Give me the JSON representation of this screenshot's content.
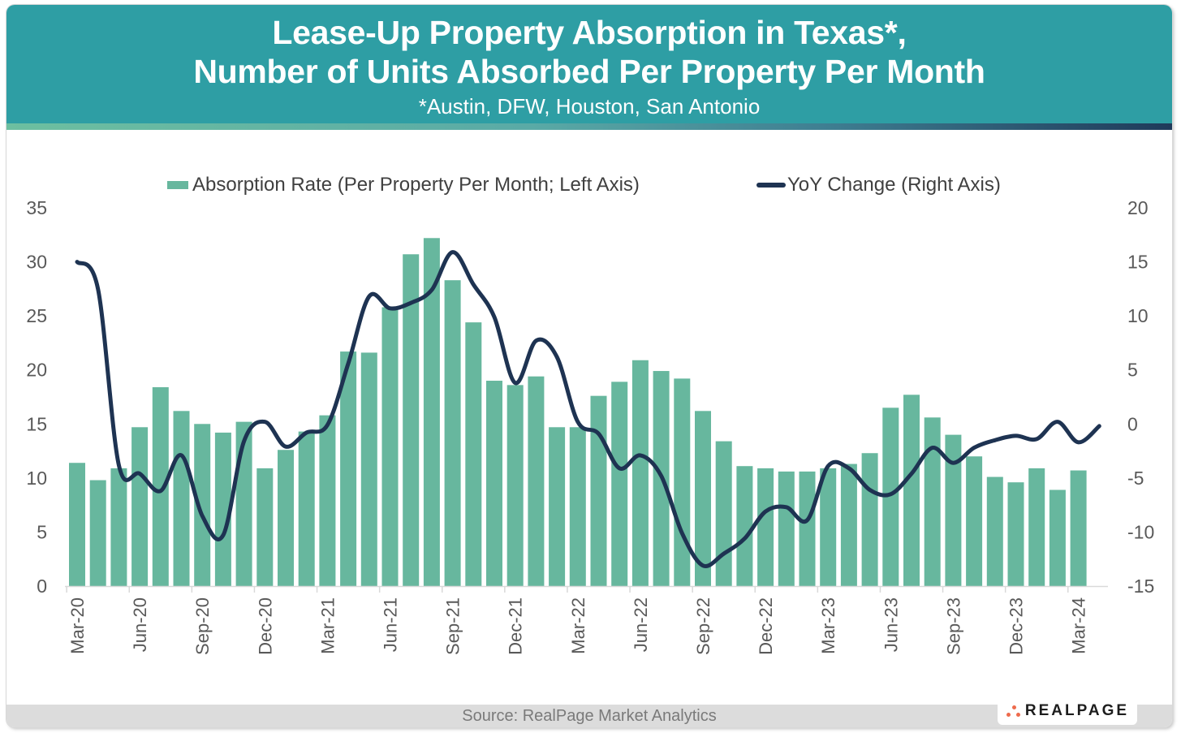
{
  "header": {
    "title_line1": "Lease-Up Property Absorption in Texas*,",
    "title_line2": "Number of Units Absorbed Per Property Per Month",
    "subtitle": "*Austin, DFW, Houston, San Antonio"
  },
  "footer": {
    "source": "Source: RealPage Market Analytics",
    "logo_text": "REALPAGE"
  },
  "colors": {
    "header_bg": "#2e9ea4",
    "bar": "#67b79e",
    "line": "#1e3352",
    "axis_text": "#595959",
    "logo_dots": "#ee6b4d"
  },
  "chart_data": {
    "type": "bar",
    "title": "Lease-Up Property Absorption in Texas*, Number of Units Absorbed Per Property Per Month",
    "subtitle": "*Austin, DFW, Houston, San Antonio",
    "xlabel": "",
    "ylabel": "",
    "legend_position": "top",
    "grid": false,
    "left_axis": {
      "range": [
        0,
        35
      ],
      "ticks": [
        0,
        5,
        10,
        15,
        20,
        25,
        30,
        35
      ]
    },
    "right_axis": {
      "range": [
        -15,
        20
      ],
      "ticks": [
        -15,
        -10,
        -5,
        0,
        5,
        10,
        15,
        20
      ],
      "tick_labels": [
        "-15",
        "-10",
        "-5",
        "0",
        "5",
        "10",
        "15",
        "20"
      ]
    },
    "x_tick_labels": [
      "Mar-20",
      "Jun-20",
      "Sep-20",
      "Dec-20",
      "Mar-21",
      "Jun-21",
      "Sep-21",
      "Dec-21",
      "Mar-22",
      "Jun-22",
      "Sep-22",
      "Dec-22",
      "Mar-23",
      "Jun-23",
      "Sep-23",
      "Dec-23",
      "Mar-24"
    ],
    "categories": [
      "Mar-20",
      "Apr-20",
      "May-20",
      "Jun-20",
      "Jul-20",
      "Aug-20",
      "Sep-20",
      "Oct-20",
      "Nov-20",
      "Dec-20",
      "Jan-21",
      "Feb-21",
      "Mar-21",
      "Apr-21",
      "May-21",
      "Jun-21",
      "Jul-21",
      "Aug-21",
      "Sep-21",
      "Oct-21",
      "Nov-21",
      "Dec-21",
      "Jan-22",
      "Feb-22",
      "Mar-22",
      "Apr-22",
      "May-22",
      "Jun-22",
      "Jul-22",
      "Aug-22",
      "Sep-22",
      "Oct-22",
      "Nov-22",
      "Dec-22",
      "Jan-23",
      "Feb-23",
      "Mar-23",
      "Apr-23",
      "May-23",
      "Jun-23",
      "Jul-23",
      "Aug-23",
      "Sep-23",
      "Oct-23",
      "Nov-23",
      "Dec-23",
      "Jan-24",
      "Feb-24",
      "Mar-24",
      "Apr-24"
    ],
    "series": [
      {
        "name": "Absorption Rate (Per Property Per Month; Left Axis)",
        "type": "bar",
        "axis": "left",
        "values": [
          11.4,
          9.8,
          10.9,
          14.7,
          18.4,
          16.2,
          15.0,
          14.2,
          15.2,
          10.9,
          12.6,
          14.3,
          15.8,
          21.7,
          21.6,
          25.8,
          30.7,
          32.2,
          28.3,
          24.4,
          19.0,
          18.6,
          19.4,
          14.7,
          14.7,
          17.6,
          18.9,
          20.9,
          19.9,
          19.2,
          16.2,
          13.4,
          11.1,
          10.9,
          10.6,
          10.6,
          10.9,
          11.3,
          12.3,
          16.5,
          17.7,
          15.6,
          14.0,
          12.0,
          10.1,
          9.6,
          10.9,
          8.9,
          10.7,
          null
        ]
      },
      {
        "name": "YoY Change (Right Axis)",
        "type": "line",
        "axis": "right",
        "values": [
          15.0,
          12.5,
          -3.8,
          -4.6,
          -6.2,
          -2.9,
          -8.5,
          -10.3,
          -1.6,
          0.2,
          -2.1,
          -0.8,
          -0.1,
          5.6,
          11.8,
          10.7,
          11.2,
          12.4,
          15.9,
          12.9,
          9.9,
          3.8,
          7.7,
          6.2,
          0.2,
          -0.9,
          -4.1,
          -2.9,
          -4.8,
          -10.1,
          -13.1,
          -12.0,
          -10.6,
          -8.1,
          -7.7,
          -8.9,
          -3.9,
          -4.1,
          -6.1,
          -6.5,
          -4.6,
          -2.2,
          -3.6,
          -2.2,
          -1.5,
          -1.1,
          -1.4,
          0.2,
          -1.7,
          -0.2
        ]
      }
    ]
  }
}
